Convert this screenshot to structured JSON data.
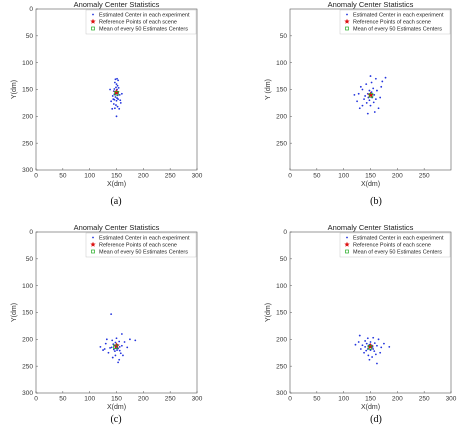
{
  "chart_data": [
    {
      "type": "scatter",
      "caption": "(a)",
      "title": "Anomaly Center Statistics",
      "xlabel": "X(dm)",
      "ylabel": "Y(dm)",
      "xlim": [
        0,
        300
      ],
      "ylim": [
        0,
        300
      ],
      "y_inverted": true,
      "xticks": [
        0,
        50,
        100,
        150,
        200,
        250,
        300
      ],
      "yticks": [
        0,
        50,
        100,
        150,
        200,
        250,
        300
      ],
      "ytick_labels": [
        "0",
        "50",
        "100",
        "150",
        "200",
        "250",
        "300"
      ],
      "grid": false,
      "legend": {
        "placement": "top-right",
        "entries": [
          "Estimated Center in each experiment",
          "Reference Points of each scene",
          "Mean of every 50 Estimates Centers"
        ]
      },
      "series": [
        {
          "name": "Estimated Center in each experiment",
          "color": "#2233dd",
          "points": [
            [
              148,
              131
            ],
            [
              151,
              130
            ],
            [
              153,
              133
            ],
            [
              147,
              137
            ],
            [
              150,
              140
            ],
            [
              152,
              143
            ],
            [
              149,
              146
            ],
            [
              146,
              149
            ],
            [
              151,
              150
            ],
            [
              154,
              147
            ],
            [
              145,
              153
            ],
            [
              148,
              155
            ],
            [
              150,
              152
            ],
            [
              153,
              156
            ],
            [
              146,
              159
            ],
            [
              149,
              158
            ],
            [
              152,
              161
            ],
            [
              143,
              162
            ],
            [
              156,
              160
            ],
            [
              148,
              164
            ],
            [
              151,
              166
            ],
            [
              146,
              169
            ],
            [
              150,
              171
            ],
            [
              153,
              168
            ],
            [
              140,
              172
            ],
            [
              158,
              175
            ],
            [
              145,
              177
            ],
            [
              149,
              179
            ],
            [
              152,
              182
            ],
            [
              147,
              185
            ],
            [
              155,
              186
            ],
            [
              144,
              168
            ],
            [
              160,
              158
            ],
            [
              138,
              150
            ],
            [
              150,
              200
            ],
            [
              142,
              186
            ],
            [
              157,
              170
            ]
          ]
        },
        {
          "name": "Reference Points of each scene",
          "color": "#dd1111",
          "points": [
            [
              150,
              155
            ]
          ]
        },
        {
          "name": "Mean of every 50 Estimates Centers",
          "color": "#22aa22",
          "points": [
            [
              150,
              157
            ]
          ]
        }
      ]
    },
    {
      "type": "scatter",
      "caption": "(b)",
      "title": "Anomaly Center Statistics",
      "xlabel": "X(dm)",
      "ylabel": "Y (dm)",
      "xlim": [
        0,
        300
      ],
      "ylim": [
        0,
        300
      ],
      "y_inverted": true,
      "xticks": [
        0,
        50,
        100,
        150,
        200,
        250
      ],
      "yticks": [
        50,
        100,
        150,
        200,
        250
      ],
      "ytick_labels": [
        "50",
        "100",
        "150",
        "200",
        "250"
      ],
      "grid": false,
      "legend": {
        "placement": "top-right",
        "entries": [
          "Estimated Center in each experiment",
          "Reference Points of each scene",
          "Mean of every 50 Estimates Centers"
        ]
      },
      "series": [
        {
          "name": "Estimated Center in each experiment",
          "color": "#2233dd",
          "points": [
            [
              150,
              125
            ],
            [
              160,
              130
            ],
            [
              142,
              140
            ],
            [
              170,
              145
            ],
            [
              135,
              150
            ],
            [
              155,
              148
            ],
            [
              148,
              152
            ],
            [
              145,
              158
            ],
            [
              152,
              155
            ],
            [
              157,
              160
            ],
            [
              140,
              162
            ],
            [
              150,
              160
            ],
            [
              146,
              165
            ],
            [
              153,
              165
            ],
            [
              138,
              168
            ],
            [
              160,
              168
            ],
            [
              148,
              170
            ],
            [
              143,
              175
            ],
            [
              156,
              174
            ],
            [
              150,
              180
            ],
            [
              120,
              160
            ],
            [
              125,
              172
            ],
            [
              130,
              185
            ],
            [
              165,
              185
            ],
            [
              172,
              135
            ],
            [
              178,
              128
            ],
            [
              132,
              145
            ],
            [
              162,
              152
            ],
            [
              128,
              158
            ],
            [
              145,
              195
            ],
            [
              158,
              192
            ],
            [
              168,
              165
            ],
            [
              135,
              180
            ],
            [
              152,
              137
            ]
          ]
        },
        {
          "name": "Reference Points of each scene",
          "color": "#dd1111",
          "points": [
            [
              150,
              160
            ]
          ]
        },
        {
          "name": "Mean of every 50 Estimates Centers",
          "color": "#22aa22",
          "points": [
            [
              151,
              161
            ]
          ]
        }
      ]
    },
    {
      "type": "scatter",
      "caption": "(c)",
      "title": "Anomaly Center Statistics",
      "xlabel": "X(dm)",
      "ylabel": "Y(dm)",
      "xlim": [
        0,
        300
      ],
      "ylim": [
        0,
        300
      ],
      "y_inverted": true,
      "xticks": [
        0,
        50,
        100,
        150,
        200,
        250,
        300
      ],
      "yticks": [
        0,
        50,
        100,
        150,
        200,
        250,
        300
      ],
      "ytick_labels": [
        "0",
        "50",
        "100",
        "150",
        "200",
        "250",
        "300"
      ],
      "grid": false,
      "legend": {
        "placement": "top-right",
        "entries": [
          "Estimated Center in each experiment",
          "Reference Points of each scene",
          "Mean of every 50 Estimates Centers"
        ]
      },
      "series": [
        {
          "name": "Estimated Center in each experiment",
          "color": "#2233dd",
          "points": [
            [
              140,
              153
            ],
            [
              160,
              190
            ],
            [
              150,
              198
            ],
            [
              142,
              202
            ],
            [
              155,
              204
            ],
            [
              148,
              206
            ],
            [
              144,
              209
            ],
            [
              152,
              210
            ],
            [
              146,
              212
            ],
            [
              150,
              213
            ],
            [
              156,
              214
            ],
            [
              141,
              215
            ],
            [
              149,
              216
            ],
            [
              153,
              217
            ],
            [
              138,
              216
            ],
            [
              160,
              212
            ],
            [
              145,
              219
            ],
            [
              151,
              220
            ],
            [
              156,
              221
            ],
            [
              147,
              222
            ],
            [
              120,
              214
            ],
            [
              125,
              220
            ],
            [
              130,
              208
            ],
            [
              165,
              205
            ],
            [
              170,
              215
            ],
            [
              175,
              200
            ],
            [
              135,
              225
            ],
            [
              158,
              226
            ],
            [
              148,
              230
            ],
            [
              143,
              234
            ],
            [
              155,
              238
            ],
            [
              128,
              218
            ],
            [
              162,
              230
            ],
            [
              132,
              200
            ],
            [
              185,
              202
            ],
            [
              153,
              243
            ]
          ]
        },
        {
          "name": "Reference Points of each scene",
          "color": "#dd1111",
          "points": [
            [
              150,
              212
            ]
          ]
        },
        {
          "name": "Mean of every 50 Estimates Centers",
          "color": "#22aa22",
          "points": [
            [
              148,
              214
            ]
          ]
        }
      ]
    },
    {
      "type": "scatter",
      "caption": "(d)",
      "title": "Anomaly Center Statistics",
      "xlabel": "X(dm)",
      "ylabel": "Y(dm)",
      "xlim": [
        0,
        300
      ],
      "ylim": [
        0,
        300
      ],
      "y_inverted": true,
      "xticks": [
        0,
        50,
        100,
        150,
        200,
        250,
        300
      ],
      "yticks": [
        0,
        50,
        100,
        150,
        200,
        250,
        300
      ],
      "ytick_labels": [
        "0",
        "50",
        "100",
        "150",
        "200",
        "250",
        "300"
      ],
      "grid": false,
      "legend": {
        "placement": "top-right",
        "entries": [
          "Estimated Center in each experiment",
          "Reference Points of each scene",
          "Mean of every 50 Estimates Centers"
        ]
      },
      "series": [
        {
          "name": "Estimated Center in each experiment",
          "color": "#2233dd",
          "points": [
            [
              130,
              193
            ],
            [
              145,
              198
            ],
            [
              155,
              197
            ],
            [
              140,
              203
            ],
            [
              150,
              205
            ],
            [
              158,
              207
            ],
            [
              143,
              208
            ],
            [
              148,
              210
            ],
            [
              152,
              211
            ],
            [
              146,
              213
            ],
            [
              154,
              214
            ],
            [
              140,
              214
            ],
            [
              149,
              215
            ],
            [
              145,
              218
            ],
            [
              155,
              218
            ],
            [
              135,
              211
            ],
            [
              162,
              212
            ],
            [
              150,
              220
            ],
            [
              142,
              221
            ],
            [
              157,
              222
            ],
            [
              128,
              205
            ],
            [
              170,
              215
            ],
            [
              165,
              200
            ],
            [
              138,
              225
            ],
            [
              160,
              228
            ],
            [
              146,
              230
            ],
            [
              153,
              233
            ],
            [
              132,
              218
            ],
            [
              175,
              208
            ],
            [
              185,
              214
            ],
            [
              148,
              238
            ],
            [
              162,
              245
            ],
            [
              122,
              210
            ],
            [
              168,
              225
            ]
          ]
        },
        {
          "name": "Reference Points of each scene",
          "color": "#dd1111",
          "points": [
            [
              150,
              213
            ]
          ]
        },
        {
          "name": "Mean of every 50 Estimates Centers",
          "color": "#22aa22",
          "points": [
            [
              149,
              215
            ]
          ]
        }
      ]
    }
  ]
}
